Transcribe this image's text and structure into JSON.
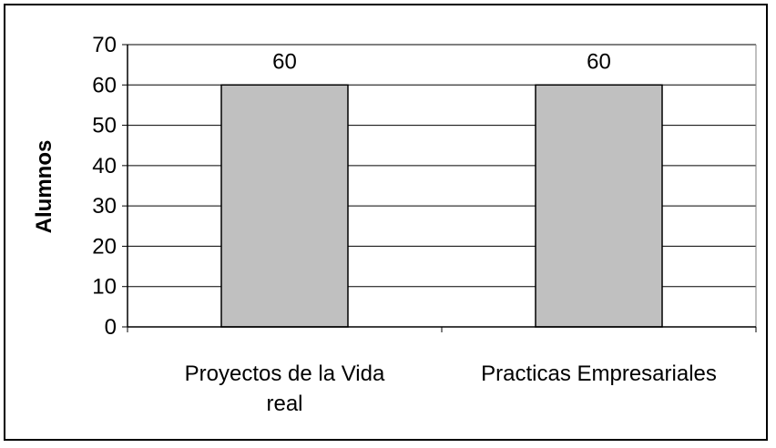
{
  "chart_data": {
    "type": "bar",
    "categories": [
      "Proyectos de la Vida real",
      "Practicas Empresariales"
    ],
    "category_lines": [
      [
        "Proyectos de la Vida",
        "real"
      ],
      [
        "Practicas Empresariales"
      ]
    ],
    "values": [
      60,
      60
    ],
    "data_labels": [
      "60",
      "60"
    ],
    "title": "",
    "xlabel": "",
    "ylabel": "Alumnos",
    "ylim": [
      0,
      70
    ],
    "yticks": [
      0,
      10,
      20,
      30,
      40,
      50,
      60,
      70
    ],
    "grid": true,
    "legend": "none",
    "bar_color": "#c0c0c0",
    "bar_edge_color": "#000000"
  }
}
